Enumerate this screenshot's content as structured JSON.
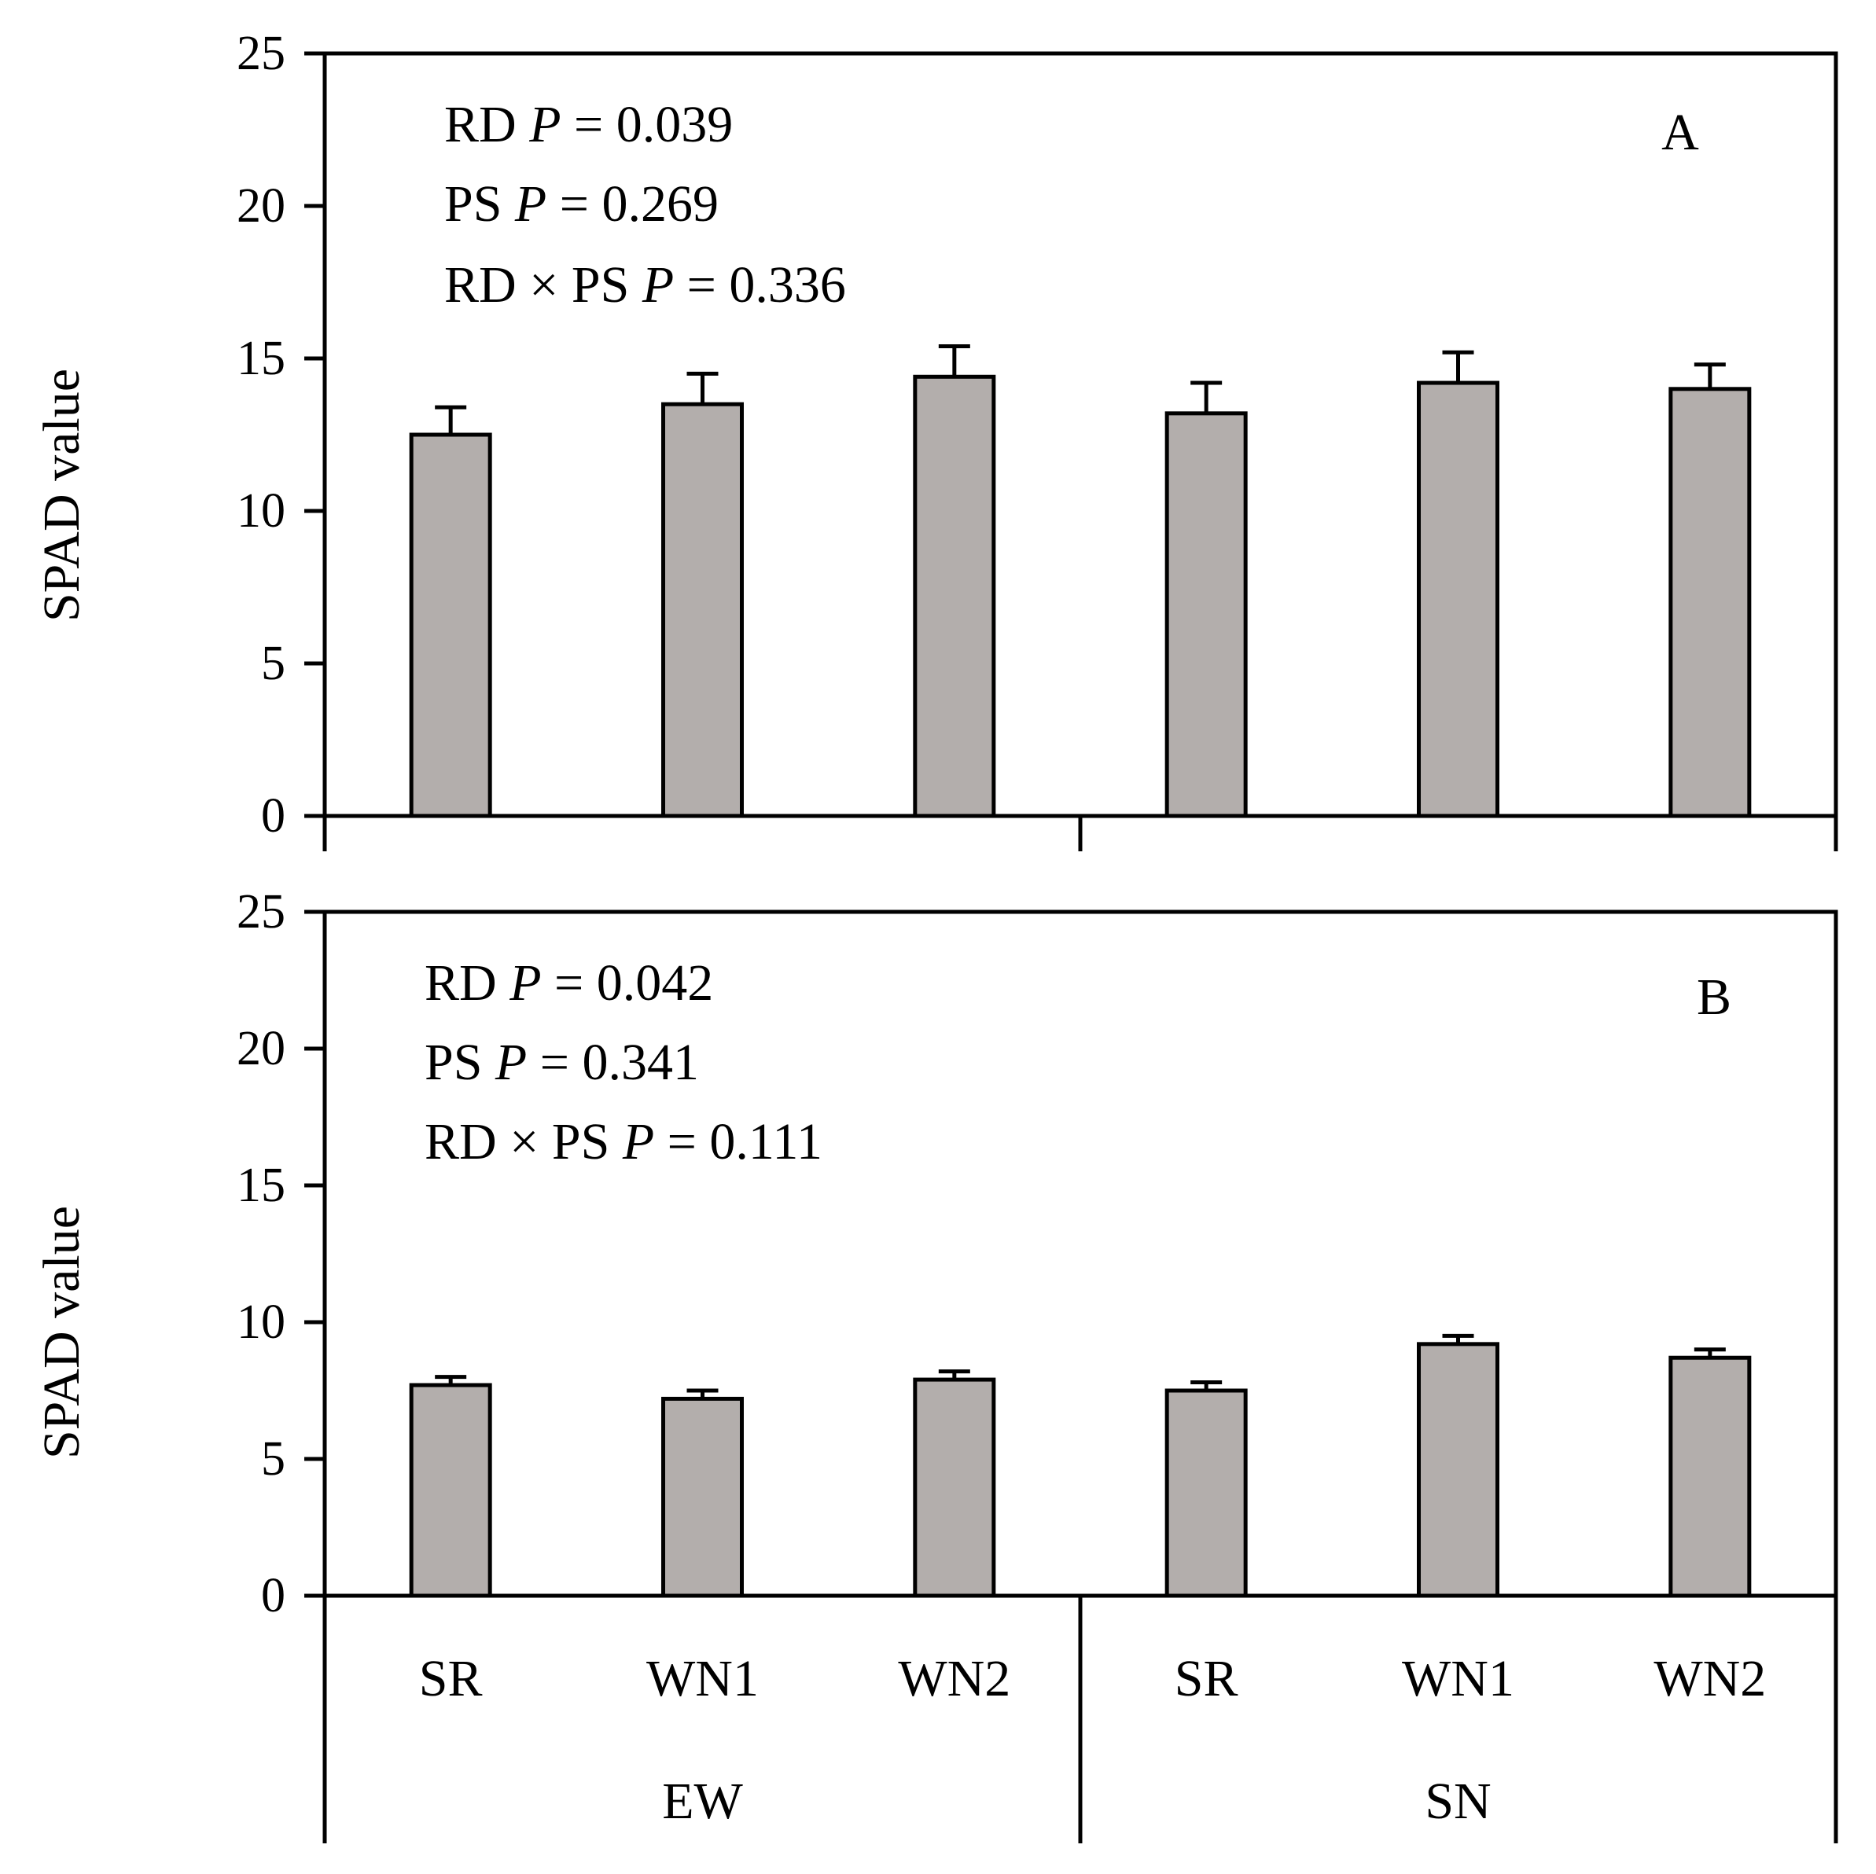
{
  "chart_data": [
    {
      "type": "bar",
      "panel_label": "A",
      "ylabel": "SPAD value",
      "ylim": [
        0,
        25
      ],
      "yticks": [
        "0",
        "5",
        "10",
        "15",
        "20",
        "25"
      ],
      "categories": [
        "SR",
        "WN1",
        "WN2",
        "SR",
        "WN1",
        "WN2"
      ],
      "groups": [
        "EW",
        "SN"
      ],
      "values": [
        12.5,
        13.5,
        14.4,
        13.2,
        14.2,
        14.0
      ],
      "errors": [
        0.9,
        1.0,
        1.0,
        1.0,
        1.0,
        0.8
      ],
      "bar_color": "#b3aeac",
      "annotations": [
        {
          "prefix": "RD ",
          "italic": "P",
          "suffix": " = 0.039"
        },
        {
          "prefix": "PS ",
          "italic": "P",
          "suffix": " = 0.269"
        },
        {
          "prefix": "RD × PS ",
          "italic": "P",
          "suffix": " = 0.336"
        }
      ]
    },
    {
      "type": "bar",
      "panel_label": "B",
      "ylabel": "SPAD value",
      "ylim": [
        0,
        25
      ],
      "yticks": [
        "0",
        "5",
        "10",
        "15",
        "20",
        "25"
      ],
      "categories": [
        "SR",
        "WN1",
        "WN2",
        "SR",
        "WN1",
        "WN2"
      ],
      "groups": [
        "EW",
        "SN"
      ],
      "values": [
        7.7,
        7.2,
        7.9,
        7.5,
        9.2,
        8.7
      ],
      "errors": [
        0.3,
        0.3,
        0.3,
        0.3,
        0.3,
        0.3
      ],
      "bar_color": "#b3aeac",
      "annotations": [
        {
          "prefix": "RD ",
          "italic": "P",
          "suffix": " = 0.042"
        },
        {
          "prefix": "PS ",
          "italic": "P",
          "suffix": " = 0.341"
        },
        {
          "prefix": "RD × PS ",
          "italic": "P",
          "suffix": " = 0.111"
        }
      ]
    }
  ]
}
